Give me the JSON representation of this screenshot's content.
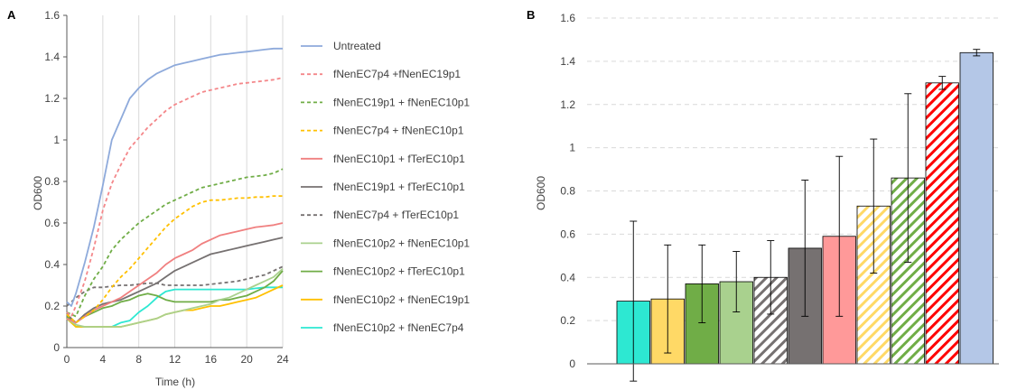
{
  "panel_labels": {
    "a": "A",
    "b": "B"
  },
  "chart_data": [
    {
      "type": "line",
      "xlabel": "Time (h)",
      "ylabel": "OD600",
      "xlim": [
        0,
        24
      ],
      "ylim": [
        0,
        1.6
      ],
      "x_ticks": [
        "0",
        "4",
        "8",
        "12",
        "16",
        "20",
        "24"
      ],
      "y_ticks": [
        "0",
        "0.2",
        "0.4",
        "0.6",
        "0.8",
        "1",
        "1.2",
        "1.4",
        "1.6"
      ],
      "grid": "vertical",
      "legend_position": "right",
      "series": [
        {
          "name": "Untreated",
          "color": "#8eaadb",
          "dash": "solid",
          "x": [
            0,
            0.5,
            1,
            2,
            3,
            4,
            5,
            6,
            7,
            8,
            9,
            10,
            11,
            12,
            13,
            14,
            15,
            16,
            17,
            18,
            19,
            20,
            21,
            22,
            23,
            24
          ],
          "y": [
            0.22,
            0.2,
            0.26,
            0.41,
            0.58,
            0.78,
            1.0,
            1.1,
            1.2,
            1.25,
            1.29,
            1.32,
            1.34,
            1.36,
            1.37,
            1.38,
            1.39,
            1.4,
            1.41,
            1.415,
            1.42,
            1.425,
            1.43,
            1.435,
            1.44,
            1.44
          ]
        },
        {
          "name": "fNenEC7p4 +fNenEC19p1",
          "color": "#f4878a",
          "dash": "dash",
          "x": [
            0,
            0.5,
            1,
            2,
            3,
            4,
            5,
            6,
            7,
            8,
            9,
            10,
            11,
            12,
            13,
            14,
            15,
            16,
            17,
            18,
            19,
            20,
            21,
            22,
            23,
            24
          ],
          "y": [
            0.17,
            0.15,
            0.2,
            0.32,
            0.48,
            0.66,
            0.79,
            0.88,
            0.96,
            1.01,
            1.06,
            1.1,
            1.14,
            1.17,
            1.19,
            1.21,
            1.23,
            1.24,
            1.25,
            1.26,
            1.27,
            1.275,
            1.28,
            1.285,
            1.29,
            1.3
          ]
        },
        {
          "name": "fNenEC19p1 + fNenEC10p1",
          "color": "#70ad47",
          "dash": "dash",
          "x": [
            0,
            1,
            2,
            3,
            4,
            5,
            6,
            7,
            8,
            9,
            10,
            11,
            12,
            13,
            14,
            15,
            16,
            17,
            18,
            19,
            20,
            21,
            22,
            23,
            24
          ],
          "y": [
            0.17,
            0.15,
            0.25,
            0.33,
            0.39,
            0.47,
            0.52,
            0.56,
            0.6,
            0.63,
            0.66,
            0.69,
            0.71,
            0.73,
            0.75,
            0.77,
            0.78,
            0.79,
            0.8,
            0.81,
            0.82,
            0.825,
            0.83,
            0.84,
            0.86
          ]
        },
        {
          "name": "fNenEC7p4 + fNenEC10p1",
          "color": "#ffc000",
          "dash": "dash",
          "x": [
            0,
            1,
            2,
            3,
            4,
            5,
            6,
            7,
            8,
            9,
            10,
            11,
            12,
            13,
            14,
            15,
            16,
            17,
            18,
            19,
            20,
            21,
            22,
            23,
            24
          ],
          "y": [
            0.16,
            0.12,
            0.15,
            0.18,
            0.23,
            0.29,
            0.34,
            0.38,
            0.43,
            0.48,
            0.53,
            0.58,
            0.62,
            0.65,
            0.68,
            0.7,
            0.71,
            0.71,
            0.715,
            0.72,
            0.72,
            0.725,
            0.725,
            0.73,
            0.73
          ]
        },
        {
          "name": "fNenEC10p1 + fTerEC10p1",
          "color": "#f08080",
          "dash": "solid",
          "x": [
            0,
            1,
            2,
            3,
            4,
            5,
            6,
            7,
            8,
            9,
            10,
            11,
            12,
            13,
            14,
            15,
            16,
            17,
            18,
            19,
            20,
            21,
            22,
            23,
            24
          ],
          "y": [
            0.14,
            0.12,
            0.15,
            0.18,
            0.2,
            0.22,
            0.24,
            0.27,
            0.3,
            0.33,
            0.36,
            0.4,
            0.43,
            0.45,
            0.47,
            0.5,
            0.52,
            0.54,
            0.55,
            0.56,
            0.57,
            0.58,
            0.585,
            0.59,
            0.6
          ]
        },
        {
          "name": "fNenEC19p1 + fTerEC10p1",
          "color": "#767171",
          "dash": "solid",
          "x": [
            0,
            1,
            2,
            3,
            4,
            5,
            6,
            7,
            8,
            9,
            10,
            11,
            12,
            13,
            14,
            15,
            16,
            17,
            18,
            19,
            20,
            21,
            22,
            23,
            24
          ],
          "y": [
            0.16,
            0.12,
            0.16,
            0.19,
            0.21,
            0.22,
            0.23,
            0.25,
            0.27,
            0.29,
            0.31,
            0.34,
            0.37,
            0.39,
            0.41,
            0.43,
            0.45,
            0.46,
            0.47,
            0.48,
            0.49,
            0.5,
            0.51,
            0.52,
            0.53
          ]
        },
        {
          "name": "fNenEC7p4 + fTerEC10p1",
          "color": "#767171",
          "dash": "dash",
          "x": [
            0,
            1,
            2,
            3,
            4,
            5,
            6,
            7,
            8,
            9,
            10,
            11,
            12,
            13,
            14,
            15,
            16,
            17,
            18,
            19,
            20,
            21,
            22,
            23,
            24
          ],
          "y": [
            0.2,
            0.24,
            0.27,
            0.29,
            0.29,
            0.295,
            0.3,
            0.3,
            0.305,
            0.31,
            0.31,
            0.3,
            0.3,
            0.3,
            0.3,
            0.3,
            0.305,
            0.31,
            0.315,
            0.32,
            0.33,
            0.34,
            0.35,
            0.37,
            0.39
          ]
        },
        {
          "name": "fNenEC10p2 + fNenEC10p1",
          "color": "#a9d18e",
          "dash": "solid",
          "x": [
            0,
            1,
            2,
            3,
            4,
            5,
            6,
            7,
            8,
            9,
            10,
            11,
            12,
            13,
            14,
            15,
            16,
            17,
            18,
            19,
            20,
            21,
            22,
            23,
            24
          ],
          "y": [
            0.14,
            0.11,
            0.1,
            0.1,
            0.1,
            0.1,
            0.1,
            0.11,
            0.12,
            0.13,
            0.14,
            0.16,
            0.17,
            0.18,
            0.19,
            0.2,
            0.21,
            0.23,
            0.24,
            0.26,
            0.28,
            0.3,
            0.32,
            0.34,
            0.38
          ]
        },
        {
          "name": "fNenEC10p2 + fTerEC10p1",
          "color": "#70ad47",
          "dash": "solid",
          "x": [
            0,
            1,
            2,
            3,
            4,
            5,
            6,
            7,
            8,
            9,
            10,
            11,
            12,
            13,
            14,
            15,
            16,
            17,
            18,
            19,
            20,
            21,
            22,
            23,
            24
          ],
          "y": [
            0.15,
            0.12,
            0.15,
            0.17,
            0.19,
            0.2,
            0.22,
            0.23,
            0.25,
            0.26,
            0.25,
            0.23,
            0.22,
            0.22,
            0.22,
            0.22,
            0.22,
            0.23,
            0.23,
            0.24,
            0.25,
            0.27,
            0.29,
            0.32,
            0.37
          ]
        },
        {
          "name": "fNenEC10p2 + fNenEC19p1",
          "color": "#ffc000",
          "dash": "solid",
          "x": [
            0,
            1,
            2,
            3,
            4,
            5,
            6,
            7,
            8,
            9,
            10,
            11,
            12,
            13,
            14,
            15,
            16,
            17,
            18,
            19,
            20,
            21,
            22,
            23,
            24
          ],
          "y": [
            0.14,
            0.1,
            0.1,
            0.1,
            0.1,
            0.1,
            0.1,
            0.11,
            0.12,
            0.13,
            0.14,
            0.16,
            0.17,
            0.18,
            0.18,
            0.19,
            0.2,
            0.2,
            0.21,
            0.22,
            0.23,
            0.24,
            0.26,
            0.28,
            0.3
          ]
        },
        {
          "name": "fNenEC10p2 + fNenEC7p4",
          "color": "#2de8d2",
          "dash": "solid",
          "x": [
            0,
            1,
            2,
            3,
            4,
            5,
            6,
            7,
            8,
            9,
            10,
            11,
            12,
            13,
            14,
            15,
            16,
            17,
            18,
            19,
            20,
            21,
            22,
            23,
            24
          ],
          "y": [
            0.14,
            0.1,
            0.1,
            0.1,
            0.1,
            0.1,
            0.12,
            0.13,
            0.17,
            0.2,
            0.24,
            0.27,
            0.28,
            0.28,
            0.28,
            0.28,
            0.28,
            0.28,
            0.28,
            0.28,
            0.28,
            0.285,
            0.29,
            0.29,
            0.29
          ]
        }
      ]
    },
    {
      "type": "bar",
      "ylabel": "OD600",
      "ylim": [
        0,
        1.6
      ],
      "y_ticks": [
        "0",
        "0.2",
        "0.4",
        "0.6",
        "0.8",
        "1",
        "1.2",
        "1.4",
        "1.6"
      ],
      "grid": "horizontal-dashed",
      "bars": [
        {
          "value": 0.29,
          "error": 0.37,
          "color": "#2de8d2",
          "pattern": "solid"
        },
        {
          "value": 0.3,
          "error": 0.25,
          "color": "#ffd966",
          "pattern": "solid"
        },
        {
          "value": 0.37,
          "error": 0.18,
          "color": "#70ad47",
          "pattern": "solid"
        },
        {
          "value": 0.38,
          "error": 0.14,
          "color": "#a9d18e",
          "pattern": "solid"
        },
        {
          "value": 0.4,
          "error": 0.17,
          "color": "#767171",
          "pattern": "hatched"
        },
        {
          "value": 0.535,
          "error": 0.315,
          "color": "#767171",
          "pattern": "solid"
        },
        {
          "value": 0.59,
          "error": 0.37,
          "color": "#ff9999",
          "pattern": "solid"
        },
        {
          "value": 0.73,
          "error": 0.31,
          "color": "#ffd966",
          "pattern": "hatched"
        },
        {
          "value": 0.86,
          "error": 0.39,
          "color": "#70ad47",
          "pattern": "hatched"
        },
        {
          "value": 1.3,
          "error": 0.03,
          "color": "#ff0000",
          "pattern": "hatched"
        },
        {
          "value": 1.44,
          "error": 0.015,
          "color": "#b4c7e7",
          "pattern": "solid"
        }
      ]
    }
  ]
}
